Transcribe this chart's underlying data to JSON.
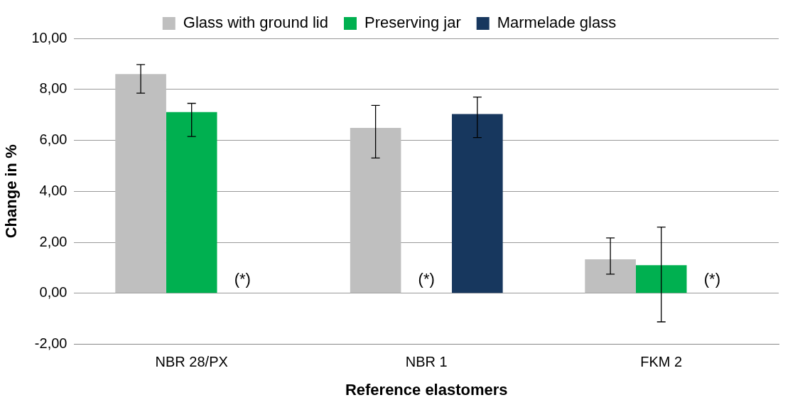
{
  "chart_data": {
    "type": "bar",
    "xlabel": "Reference elastomers",
    "ylabel": "Change in %",
    "categories": [
      "NBR 28/PX",
      "NBR 1",
      "FKM 2"
    ],
    "series": [
      {
        "name": "Glass with ground lid",
        "color": "#bfbfbf",
        "values": [
          8.6,
          6.49,
          1.33
        ],
        "errors": [
          [
            7.85,
            8.97
          ],
          [
            5.31,
            7.37
          ],
          [
            0.75,
            2.17
          ]
        ]
      },
      {
        "name": "Preserving jar",
        "color": "#00b050",
        "values": [
          7.11,
          null,
          1.1
        ],
        "errors": [
          [
            6.15,
            7.45
          ],
          null,
          [
            -1.12,
            2.6
          ]
        ]
      },
      {
        "name": "Marmelade glass",
        "color": "#17375e",
        "values": [
          null,
          7.03,
          null
        ],
        "errors": [
          null,
          [
            6.11,
            7.7
          ],
          null
        ]
      }
    ],
    "ylim": [
      -2,
      10
    ],
    "yticks": [
      {
        "value": -2,
        "label": "-2,00"
      },
      {
        "value": 0,
        "label": "0,00"
      },
      {
        "value": 2,
        "label": "2,00"
      },
      {
        "value": 4,
        "label": "4,00"
      },
      {
        "value": 6,
        "label": "6,00"
      },
      {
        "value": 8,
        "label": "8,00"
      },
      {
        "value": 10,
        "label": "10,00"
      }
    ],
    "grid": "y",
    "legend": "top",
    "annotations": [
      "(*)",
      "(*)",
      "(*)"
    ]
  }
}
